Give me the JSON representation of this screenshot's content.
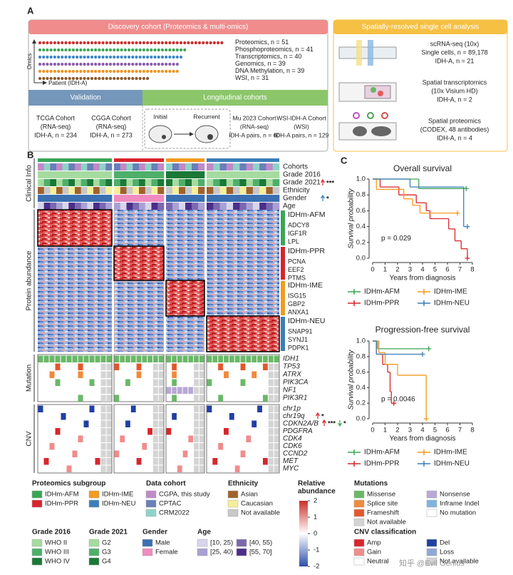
{
  "panel_labels": [
    "A",
    "B",
    "C"
  ],
  "panel_a": {
    "discovery_title": "Discovery cohort (Proteomics & multi-omics)",
    "omics_axis": "Omics",
    "patient_axis": "Patient (IDH-A)",
    "omics": [
      {
        "label": "Proteomics, n = ",
        "n": 51,
        "color": "#c9302c"
      },
      {
        "label": "Phosphoproteomics, n = ",
        "n": 41,
        "color": "#3aa655"
      },
      {
        "label": "Transcriptomics, n = ",
        "n": 40,
        "color": "#3a87c8"
      },
      {
        "label": "Genomics, n = ",
        "n": 39,
        "color": "#8a5ca8"
      },
      {
        "label": "DNA Methylation, n = ",
        "n": 39,
        "color": "#f0931e"
      },
      {
        "label": "WSI, n = ",
        "n": 31,
        "color": "#8b5a2b"
      }
    ],
    "validation_title": "Validation",
    "longitudinal_title": "Longitudinal cohorts",
    "validation_cohorts": [
      [
        "TCGA Cohort",
        "(RNA-seq)",
        "IDH-A, n = 234"
      ],
      [
        "CGGA Cohort",
        "(RNA-seq)",
        "IDH-A, n = 273"
      ]
    ],
    "initial": "Initial",
    "recurrent": "Recurrent",
    "longitudinal_cohorts": [
      [
        "Mu 2023 Cohort",
        "(RNA-seq)",
        "IDH-A pairs, n = 60"
      ],
      [
        "WSI-IDH-A Cohort",
        "(WSI)",
        "IDH-A pairs, n = 129"
      ]
    ],
    "spatial_title": "Spatially-resolved single cell analysis",
    "spatial": [
      [
        "scRNA-seq (10x)",
        "Single cells, n = 89,178",
        "IDH-A, n = 21"
      ],
      [
        "Spatial transcriptomics",
        "(10x Visium HD)",
        "IDH-A, n = 2"
      ],
      [
        "Spatial proteomics",
        "(CODEX, 48 antibodies)",
        "IDH-A, n = 4"
      ]
    ]
  },
  "panel_b": {
    "sections": [
      "Clinical Info",
      "Protein abundance",
      "Mutation",
      "CNV"
    ],
    "clinical_tracks": [
      "Cohorts",
      "Grade 2016",
      "Grade 2021",
      "Ethnicity",
      "Gender",
      "Age"
    ],
    "grade_2021_significance": "***",
    "gender_significance": "*",
    "subgroups": [
      {
        "name": "IDHm-AFM",
        "proteins": [
          "ADCY8",
          "IGF1R",
          "LPL"
        ]
      },
      {
        "name": "IDHm-PPR",
        "proteins": [
          "PCNA",
          "EEF2",
          "PTMS"
        ]
      },
      {
        "name": "IDHm-IME",
        "proteins": [
          "ISG15",
          "GBP2",
          "ANXA1"
        ]
      },
      {
        "name": "IDHm-NEU",
        "proteins": [
          "SNAP91",
          "SYNJ1",
          "PDPK1"
        ]
      }
    ],
    "mutations": [
      "IDH1",
      "TP53",
      "ATRX",
      "PIK3CA",
      "NF1",
      "PIK3R1"
    ],
    "cnv": [
      "chr1p",
      "chr19q",
      "CDKN2A/B",
      "PDGFRA",
      "CDK4",
      "CDK6",
      "CCND2",
      "MET",
      "MYC"
    ],
    "chr19q_significance": "*",
    "cdkn2ab_significance_up": "***",
    "cdkn2ab_significance_down": "*"
  },
  "chart_data": [
    {
      "type": "line",
      "drawstyle": "steps-post",
      "title": "Overall survival",
      "x_label": "Years from diagnosis",
      "y_label": "Survival probability",
      "annotation": "p = 0.029",
      "xlim": [
        0,
        8
      ],
      "xticks": [
        0,
        1,
        2,
        3,
        4,
        5,
        6,
        7,
        8
      ],
      "ylim": [
        0,
        1
      ],
      "yticks": [
        {
          "value": 0,
          "label": "0.0"
        },
        {
          "value": 0.2,
          "label": "0.2"
        },
        {
          "value": 0.4,
          "label": "0.4"
        },
        {
          "value": 0.6,
          "label": "0.6"
        },
        {
          "value": 0.8,
          "label": "0.8"
        },
        {
          "value": 1,
          "label": "1.0"
        }
      ],
      "series": [
        {
          "name": "IDHm-AFM",
          "color": "#3aa655",
          "x": [
            0,
            3.7,
            7.5
          ],
          "values": [
            1.0,
            0.88,
            0.88
          ]
        },
        {
          "name": "IDHm-PPR",
          "color": "#d7262c",
          "x": [
            0,
            0.6,
            2.1,
            3.5,
            4.3,
            4.6,
            6.1,
            6.6,
            7.1,
            7.6
          ],
          "values": [
            1.0,
            0.9,
            0.8,
            0.7,
            0.6,
            0.5,
            0.37,
            0.22,
            0.12,
            0.0
          ]
        },
        {
          "name": "IDHm-IME",
          "color": "#f39a1e",
          "x": [
            0,
            0.3,
            2.5,
            3.2,
            3.8,
            6.8
          ],
          "values": [
            1.0,
            0.87,
            0.75,
            0.67,
            0.57,
            0.57
          ]
        },
        {
          "name": "IDHm-NEU",
          "color": "#3a7fb8",
          "x": [
            0,
            3.0,
            7.3,
            7.6
          ],
          "values": [
            1.0,
            0.9,
            0.4,
            0.4
          ]
        }
      ]
    },
    {
      "type": "line",
      "drawstyle": "steps-post",
      "title": "Progression-free survival",
      "x_label": "Years from diagnosis",
      "y_label": "Survival probability",
      "annotation": "p = 0.0046",
      "xlim": [
        0,
        8
      ],
      "xticks": [
        0,
        1,
        2,
        3,
        4,
        5,
        6,
        7,
        8
      ],
      "ylim": [
        0,
        1
      ],
      "yticks": [
        {
          "value": 0,
          "label": "0.0"
        },
        {
          "value": 0.2,
          "label": "0.2"
        },
        {
          "value": 0.4,
          "label": "0.4"
        },
        {
          "value": 0.6,
          "label": "0.6"
        },
        {
          "value": 0.8,
          "label": "0.8"
        },
        {
          "value": 1,
          "label": "1.0"
        }
      ],
      "series": [
        {
          "name": "IDHm-AFM",
          "color": "#3aa655",
          "x": [
            0,
            0.4,
            4.5
          ],
          "values": [
            1.0,
            0.9,
            0.9
          ]
        },
        {
          "name": "IDHm-PPR",
          "color": "#d7262c",
          "x": [
            0,
            0.3,
            0.8,
            1.2,
            1.4,
            1.5,
            1.7
          ],
          "values": [
            1.0,
            0.83,
            0.7,
            0.6,
            0.35,
            0.2,
            0.2
          ]
        },
        {
          "name": "IDHm-IME",
          "color": "#f39a1e",
          "x": [
            0,
            0.5,
            1.0,
            2.0,
            4.3
          ],
          "values": [
            1.0,
            0.85,
            0.7,
            0.56,
            0.0
          ]
        },
        {
          "name": "IDHm-NEU",
          "color": "#3a7fb8",
          "x": [
            0,
            0.3,
            4.0
          ],
          "values": [
            1.0,
            0.83,
            0.83
          ]
        }
      ]
    }
  ],
  "legends": [
    {
      "title": "Proteomics subgroup",
      "cols": 2,
      "items": [
        {
          "label": "IDHm-AFM",
          "color": "#3aa655"
        },
        {
          "label": "IDHm-IME",
          "color": "#f39a1e"
        },
        {
          "label": "IDHm-PPR",
          "color": "#d7262c"
        },
        {
          "label": "IDHm-NEU",
          "color": "#3a7fb8"
        }
      ]
    },
    {
      "title": "Data cohort",
      "cols": 1,
      "items": [
        {
          "label": "CGPA, this study",
          "color": "#c08ac8"
        },
        {
          "label": "CPTAC",
          "color": "#6a7fb8"
        },
        {
          "label": "CRM2022",
          "color": "#8fd3c8"
        }
      ]
    },
    {
      "title": "Ethnicity",
      "cols": 1,
      "items": [
        {
          "label": "Asian",
          "color": "#a0622d"
        },
        {
          "label": "Caucasian",
          "color": "#f7ee9a"
        },
        {
          "label": "Not available",
          "color": "#c8c8c8"
        }
      ]
    },
    {
      "title": "Mutations",
      "cols": 2,
      "items": [
        {
          "label": "Missense",
          "color": "#6ab867"
        },
        {
          "label": "Nonsense",
          "color": "#b7a8d6"
        },
        {
          "label": "Splice site",
          "color": "#f08a3c"
        },
        {
          "label": "Inframe Indel",
          "color": "#7fb4dc"
        },
        {
          "label": "Frameshift",
          "color": "#e3572b"
        },
        {
          "label": "No mutation",
          "color": "#ffffff"
        },
        {
          "label": "Not available",
          "color": "#d4d4d4"
        }
      ]
    },
    {
      "title": "Grade 2016",
      "cols": 1,
      "items": [
        {
          "label": "WHO II",
          "color": "#a6dba0"
        },
        {
          "label": "WHO III",
          "color": "#4daf6a"
        },
        {
          "label": "WHO IV",
          "color": "#1b7837"
        }
      ]
    },
    {
      "title": "Grade 2021",
      "cols": 1,
      "items": [
        {
          "label": "G2",
          "color": "#a6dba0"
        },
        {
          "label": "G3",
          "color": "#4daf6a"
        },
        {
          "label": "G4",
          "color": "#1b7837"
        }
      ]
    },
    {
      "title": "Gender",
      "cols": 1,
      "items": [
        {
          "label": "Male",
          "color": "#3a6fb0"
        },
        {
          "label": "Female",
          "color": "#f08ac0"
        }
      ]
    },
    {
      "title": "Age",
      "cols": 2,
      "items": [
        {
          "label": "[10, 25)",
          "color": "#d8d4ec"
        },
        {
          "label": "[40, 55)",
          "color": "#7b68b0"
        },
        {
          "label": "[25, 40)",
          "color": "#aaa0d4"
        },
        {
          "label": "[55, 70]",
          "color": "#4b2d8a"
        }
      ]
    },
    {
      "title": "CNV classification",
      "cols": 2,
      "items": [
        {
          "label": "Amp",
          "color": "#d7262c"
        },
        {
          "label": "Del",
          "color": "#2140a3"
        },
        {
          "label": "Gain",
          "color": "#f08c8c"
        },
        {
          "label": "Loss",
          "color": "#8fa8d8"
        },
        {
          "label": "Neutral",
          "color": "#ffffff"
        },
        {
          "label": "Not available",
          "color": "#d4d4d4"
        }
      ]
    }
  ],
  "colorbar": {
    "title": [
      "Relative",
      "abundance"
    ],
    "ticks": [
      2,
      1,
      0,
      -1,
      -2
    ],
    "lim": [
      -2,
      2
    ]
  },
  "watermark": "知乎 @Evil Genius"
}
